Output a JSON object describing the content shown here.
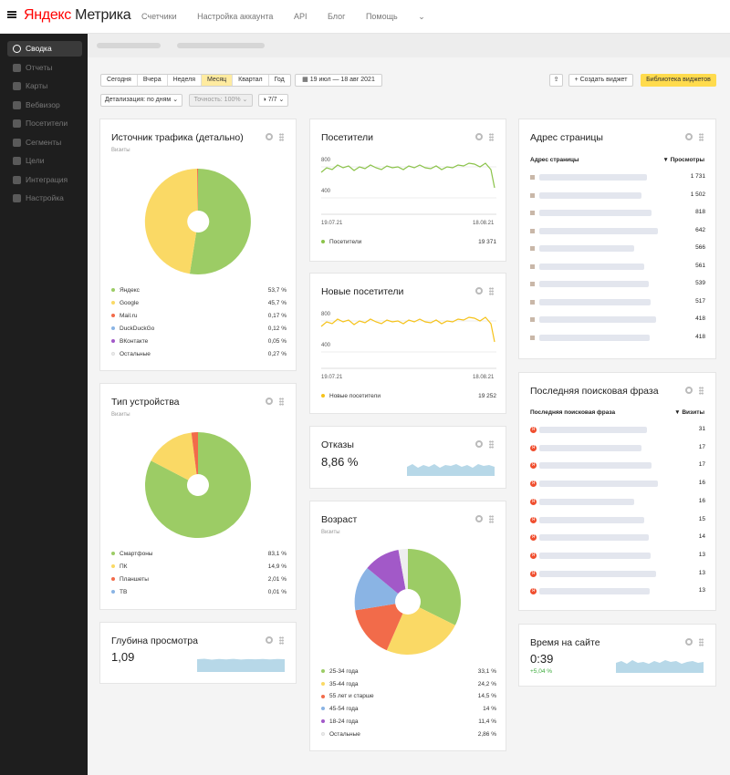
{
  "header": {
    "brand_ya": "Яндекс",
    "brand_rest": " Метрика",
    "nav": [
      "Счетчики",
      "Настройка аккаунта",
      "API",
      "Блог",
      "Помощь"
    ]
  },
  "sidebar": {
    "items": [
      {
        "label": "Сводка",
        "icon": "gauge-icon",
        "active": true
      },
      {
        "label": "Отчеты",
        "icon": "bar-chart-icon"
      },
      {
        "label": "Карты",
        "icon": "map-icon"
      },
      {
        "label": "Вебвизор",
        "icon": "play-icon"
      },
      {
        "label": "Посетители",
        "icon": "users-icon"
      },
      {
        "label": "Сегменты",
        "icon": "filter-icon"
      },
      {
        "label": "Цели",
        "icon": "target-icon"
      },
      {
        "label": "Интеграция",
        "icon": "puzzle-icon"
      },
      {
        "label": "Настройка",
        "icon": "gear-icon"
      }
    ]
  },
  "toolbar": {
    "periods": [
      "Сегодня",
      "Вчера",
      "Неделя",
      "Месяц",
      "Квартал",
      "Год"
    ],
    "selected_period": "Месяц",
    "date_range": "19 июл — 18 авг 2021",
    "create_widget": "Создать виджет",
    "widget_library": "Библиотека виджетов",
    "detail": "Детализация: по дням",
    "accuracy": "Точность: 100%",
    "segments": "7/7"
  },
  "traffic": {
    "title": "Источник трафика (детально)",
    "sub": "Визиты",
    "items": [
      {
        "name": "Яндекс",
        "value": "53,7 %",
        "color": "#9ccc65"
      },
      {
        "name": "Google",
        "value": "45,7 %",
        "color": "#fad965"
      },
      {
        "name": "Mail.ru",
        "value": "0,17 %",
        "color": "#f26b4a"
      },
      {
        "name": "DuckDuckGo",
        "value": "0,12 %",
        "color": "#8ab4e4"
      },
      {
        "name": "ВКонтакте",
        "value": "0,05 %",
        "color": "#a259c8"
      },
      {
        "name": "Остальные",
        "value": "0,27 %",
        "color": "#eeeeee"
      }
    ]
  },
  "device": {
    "title": "Тип устройства",
    "sub": "Визиты",
    "items": [
      {
        "name": "Смартфоны",
        "value": "83,1 %",
        "color": "#9ccc65"
      },
      {
        "name": "ПК",
        "value": "14,9 %",
        "color": "#fad965"
      },
      {
        "name": "Планшеты",
        "value": "2,01 %",
        "color": "#f26b4a"
      },
      {
        "name": "ТВ",
        "value": "0,01 %",
        "color": "#8ab4e4"
      }
    ]
  },
  "depth": {
    "title": "Глубина просмотра",
    "value": "1,09"
  },
  "visitors": {
    "title": "Посетители",
    "y_top": "800",
    "y_mid": "400",
    "x_start": "19.07.21",
    "x_end": "18.08.21",
    "legend": "Посетители",
    "total": "19 371",
    "color": "#8bc34a"
  },
  "new_visitors": {
    "title": "Новые посетители",
    "y_top": "800",
    "y_mid": "400",
    "x_start": "19.07.21",
    "x_end": "18.08.21",
    "legend": "Новые посетители",
    "total": "19 252",
    "color": "#f5c219"
  },
  "bounce": {
    "title": "Отказы",
    "value": "8,86 %"
  },
  "age": {
    "title": "Возраст",
    "sub": "Визиты",
    "items": [
      {
        "name": "25-34 года",
        "value": "33,1 %",
        "color": "#9ccc65"
      },
      {
        "name": "35-44 года",
        "value": "24,2 %",
        "color": "#fad965"
      },
      {
        "name": "55 лет и старше",
        "value": "14,5 %",
        "color": "#f26b4a"
      },
      {
        "name": "45-54 года",
        "value": "14 %",
        "color": "#8ab4e4"
      },
      {
        "name": "18-24 года",
        "value": "11,4 %",
        "color": "#a259c8"
      },
      {
        "name": "Остальные",
        "value": "2,86 %",
        "color": "#eeeeee"
      }
    ]
  },
  "pages": {
    "title": "Адрес страницы",
    "col1": "Адрес страницы",
    "col2": "▼ Просмотры",
    "values": [
      "1 731",
      "1 502",
      "818",
      "642",
      "566",
      "561",
      "539",
      "517",
      "418",
      "418"
    ]
  },
  "search": {
    "title": "Последняя поисковая фраза",
    "col1": "Последняя поисковая фраза",
    "col2": "▼ Визиты",
    "values": [
      "31",
      "17",
      "17",
      "16",
      "16",
      "15",
      "14",
      "13",
      "13",
      "13"
    ]
  },
  "time": {
    "title": "Время на сайте",
    "value": "0:39",
    "delta": "+5,04 %"
  }
}
